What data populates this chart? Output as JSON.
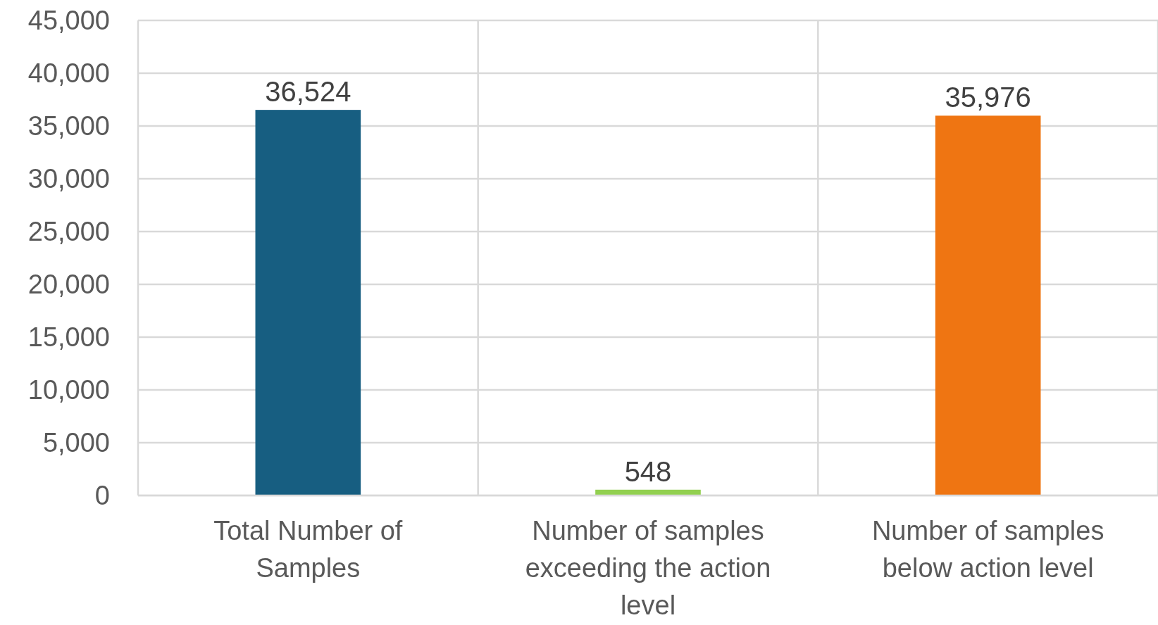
{
  "chart_data": {
    "type": "bar",
    "categories": [
      "Total Number of Samples",
      "Number of samples exceeding the action level",
      "Number of samples below action level"
    ],
    "values": [
      36524,
      548,
      35976
    ],
    "colors": [
      "#175e81",
      "#92d050",
      "#ef7512"
    ],
    "ylim": [
      0,
      45000
    ],
    "yticks": [
      {
        "value": 0,
        "label": "0"
      },
      {
        "value": 5000,
        "label": "5,000"
      },
      {
        "value": 10000,
        "label": "10,000"
      },
      {
        "value": 15000,
        "label": "15,000"
      },
      {
        "value": 20000,
        "label": "20,000"
      },
      {
        "value": 25000,
        "label": "25,000"
      },
      {
        "value": 30000,
        "label": "30,000"
      },
      {
        "value": 35000,
        "label": "35,000"
      },
      {
        "value": 40000,
        "label": "40,000"
      },
      {
        "value": 45000,
        "label": "45,000"
      }
    ],
    "value_labels": [
      "36,524",
      "548",
      "35,976"
    ],
    "grid": true
  }
}
